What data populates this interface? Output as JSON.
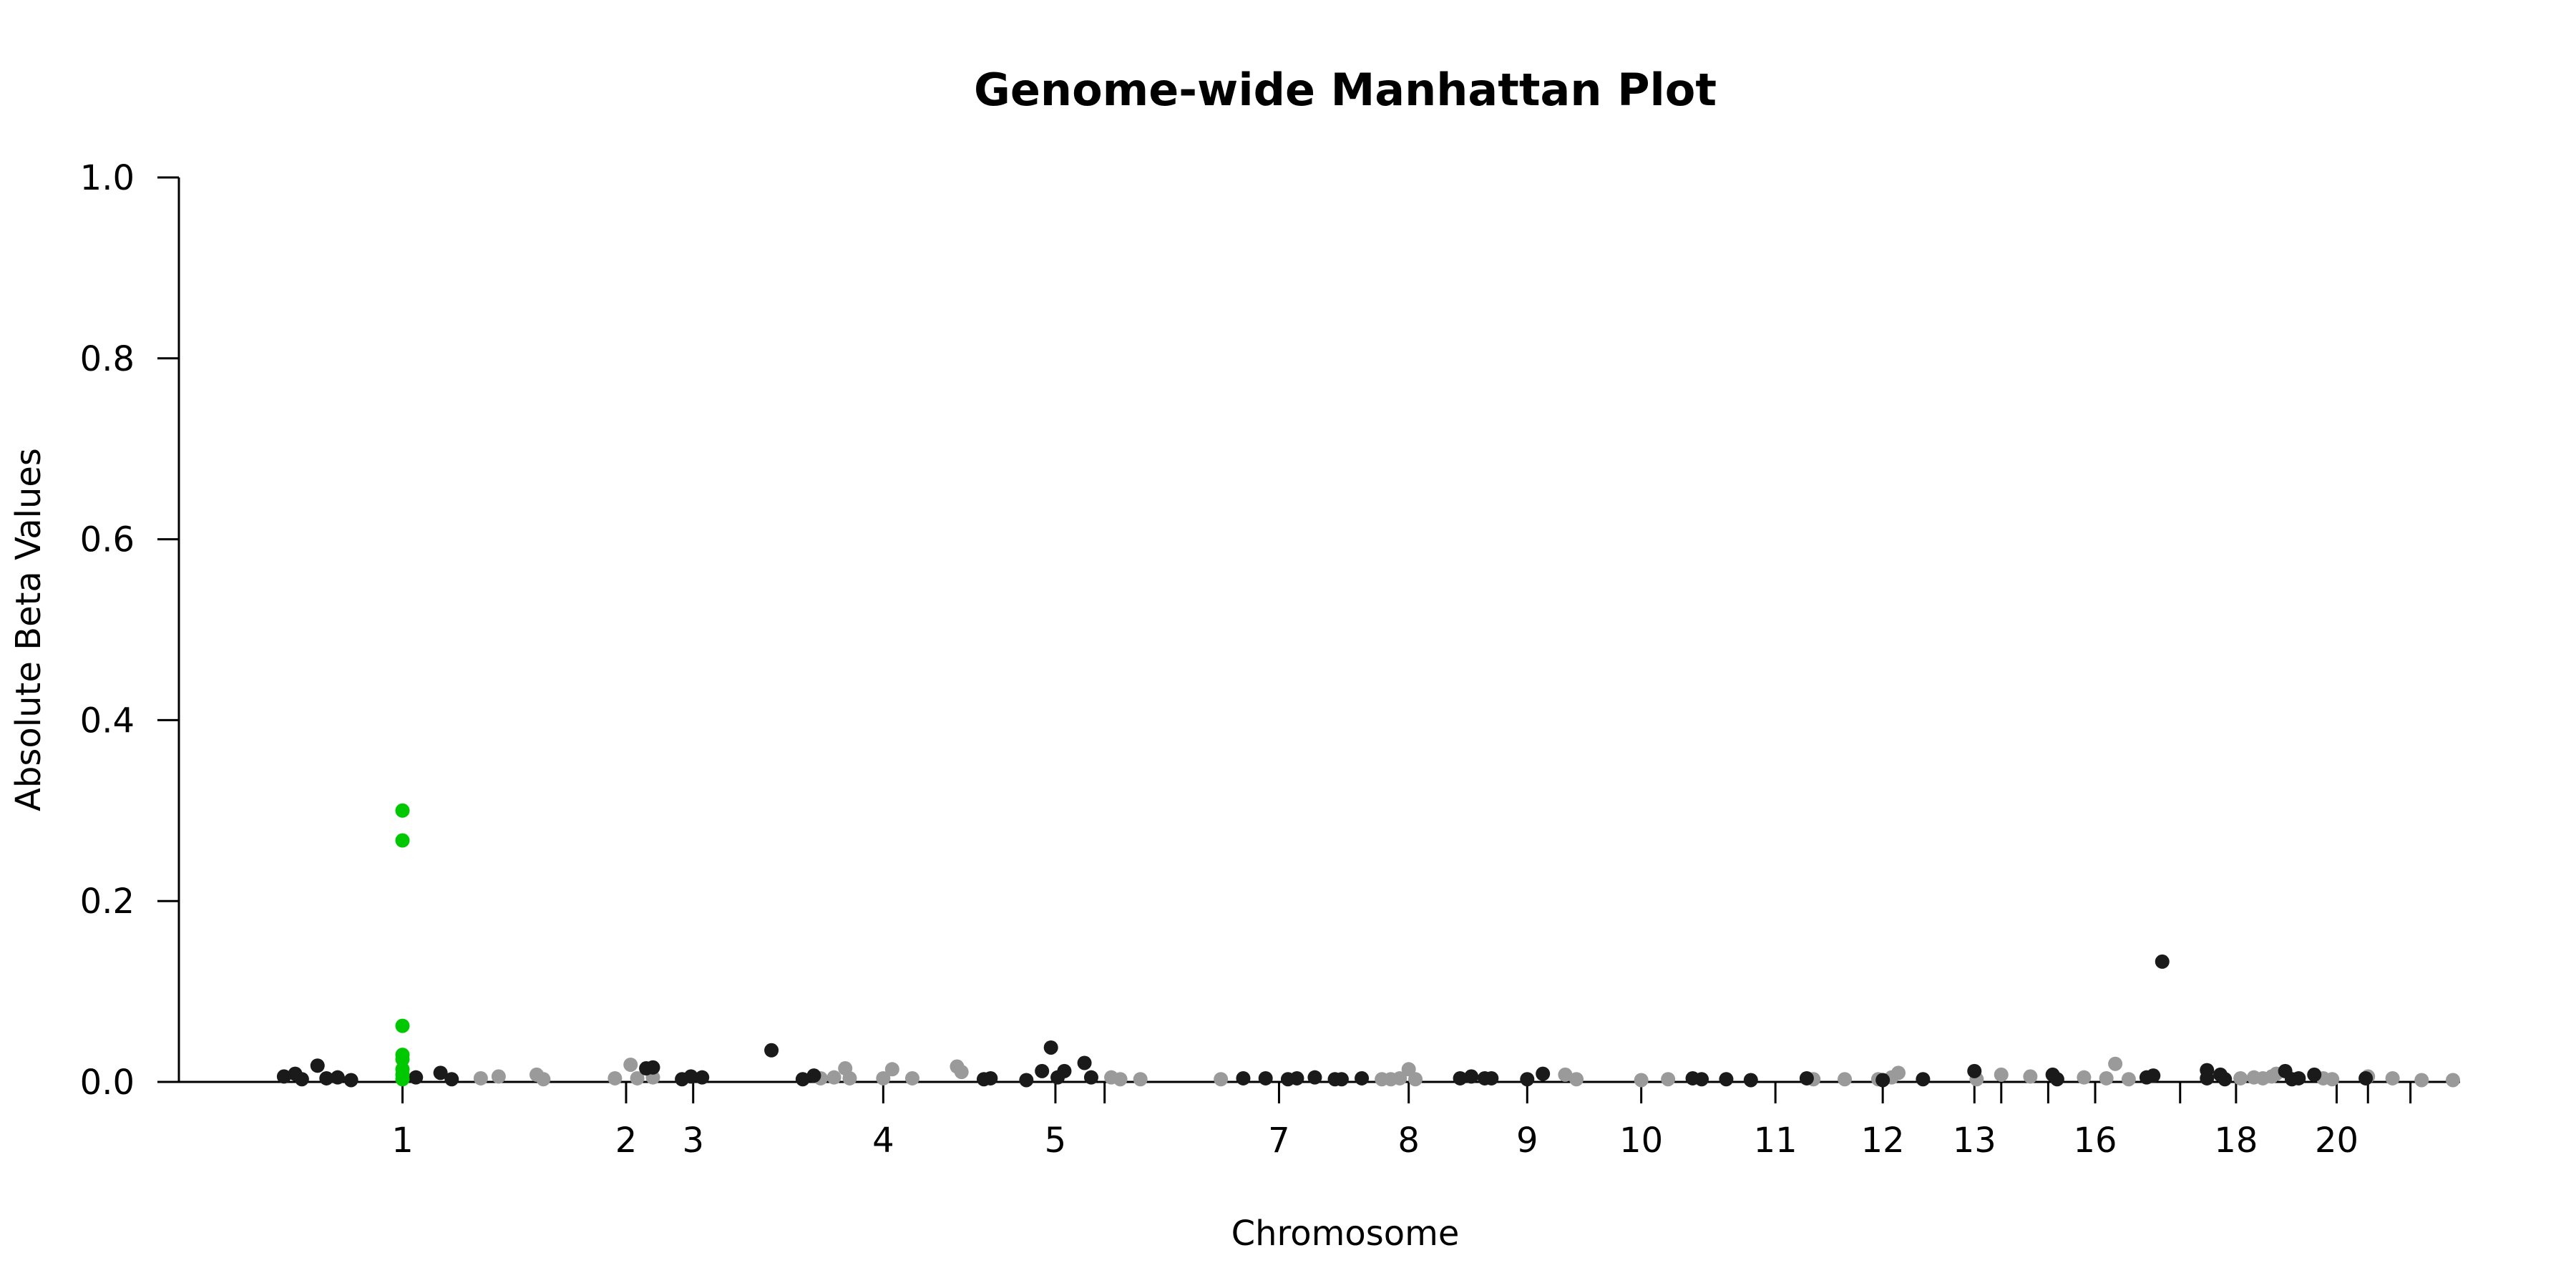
{
  "chart_data": {
    "type": "scatter",
    "title": "Genome-wide Manhattan Plot",
    "xlabel": "Chromosome",
    "ylabel": "Absolute Beta Values",
    "ylim": [
      0,
      1.0
    ],
    "y_ticks": [
      "0.0",
      "0.2",
      "0.4",
      "0.6",
      "0.8",
      "1.0"
    ],
    "x_ticks": [
      "1",
      "2",
      "3",
      "4",
      "5",
      "7",
      "8",
      "9",
      "10",
      "11",
      "12",
      "13",
      "16",
      "18",
      "20"
    ],
    "x_tick_positions": [
      1.0,
      2.0,
      2.3,
      3.15,
      3.92,
      4.92,
      5.5,
      6.03,
      6.54,
      7.14,
      7.62,
      8.03,
      8.57,
      9.2,
      9.65
    ],
    "x_unlabeled_tick_positions": [
      4.14,
      8.15,
      8.36,
      8.95,
      9.79,
      9.98
    ],
    "xlim": [
      0,
      10.17
    ],
    "grid": false,
    "legend": "none",
    "colors": {
      "dark": "#1a1a1a",
      "light": "#9a9a9a",
      "highlight": "#00c800",
      "axis": "#000000",
      "background": "#ffffff"
    },
    "points": [
      {
        "x": 0.47,
        "y": 0.006,
        "c": "dark"
      },
      {
        "x": 0.52,
        "y": 0.009,
        "c": "dark"
      },
      {
        "x": 0.55,
        "y": 0.003,
        "c": "dark"
      },
      {
        "x": 0.62,
        "y": 0.018,
        "c": "dark"
      },
      {
        "x": 0.66,
        "y": 0.004,
        "c": "dark"
      },
      {
        "x": 0.71,
        "y": 0.005,
        "c": "dark"
      },
      {
        "x": 0.77,
        "y": 0.002,
        "c": "dark"
      },
      {
        "x": 1.0,
        "y": 0.3,
        "c": "highlight"
      },
      {
        "x": 1.0,
        "y": 0.267,
        "c": "highlight"
      },
      {
        "x": 1.0,
        "y": 0.062,
        "c": "highlight"
      },
      {
        "x": 1.0,
        "y": 0.03,
        "c": "highlight"
      },
      {
        "x": 1.0,
        "y": 0.025,
        "c": "highlight"
      },
      {
        "x": 1.0,
        "y": 0.014,
        "c": "highlight"
      },
      {
        "x": 1.0,
        "y": 0.008,
        "c": "highlight"
      },
      {
        "x": 1.0,
        "y": 0.003,
        "c": "highlight"
      },
      {
        "x": 1.06,
        "y": 0.005,
        "c": "dark"
      },
      {
        "x": 1.17,
        "y": 0.01,
        "c": "dark"
      },
      {
        "x": 1.22,
        "y": 0.003,
        "c": "dark"
      },
      {
        "x": 1.35,
        "y": 0.004,
        "c": "light"
      },
      {
        "x": 1.43,
        "y": 0.006,
        "c": "light"
      },
      {
        "x": 1.6,
        "y": 0.008,
        "c": "light"
      },
      {
        "x": 1.63,
        "y": 0.003,
        "c": "light"
      },
      {
        "x": 1.95,
        "y": 0.004,
        "c": "light"
      },
      {
        "x": 2.02,
        "y": 0.019,
        "c": "light"
      },
      {
        "x": 2.05,
        "y": 0.004,
        "c": "light"
      },
      {
        "x": 2.09,
        "y": 0.015,
        "c": "dark"
      },
      {
        "x": 2.12,
        "y": 0.016,
        "c": "dark"
      },
      {
        "x": 2.12,
        "y": 0.005,
        "c": "light"
      },
      {
        "x": 2.25,
        "y": 0.003,
        "c": "dark"
      },
      {
        "x": 2.29,
        "y": 0.006,
        "c": "dark"
      },
      {
        "x": 2.34,
        "y": 0.005,
        "c": "dark"
      },
      {
        "x": 2.65,
        "y": 0.035,
        "c": "dark"
      },
      {
        "x": 2.79,
        "y": 0.003,
        "c": "dark"
      },
      {
        "x": 2.84,
        "y": 0.007,
        "c": "dark"
      },
      {
        "x": 2.87,
        "y": 0.004,
        "c": "light"
      },
      {
        "x": 2.93,
        "y": 0.005,
        "c": "light"
      },
      {
        "x": 2.98,
        "y": 0.015,
        "c": "light"
      },
      {
        "x": 3.0,
        "y": 0.004,
        "c": "light"
      },
      {
        "x": 3.15,
        "y": 0.004,
        "c": "light"
      },
      {
        "x": 3.19,
        "y": 0.014,
        "c": "light"
      },
      {
        "x": 3.28,
        "y": 0.004,
        "c": "light"
      },
      {
        "x": 3.48,
        "y": 0.017,
        "c": "light"
      },
      {
        "x": 3.5,
        "y": 0.011,
        "c": "light"
      },
      {
        "x": 3.6,
        "y": 0.003,
        "c": "dark"
      },
      {
        "x": 3.63,
        "y": 0.004,
        "c": "dark"
      },
      {
        "x": 3.79,
        "y": 0.002,
        "c": "dark"
      },
      {
        "x": 3.86,
        "y": 0.012,
        "c": "dark"
      },
      {
        "x": 3.9,
        "y": 0.038,
        "c": "dark"
      },
      {
        "x": 3.93,
        "y": 0.005,
        "c": "dark"
      },
      {
        "x": 3.96,
        "y": 0.012,
        "c": "dark"
      },
      {
        "x": 4.05,
        "y": 0.021,
        "c": "dark"
      },
      {
        "x": 4.08,
        "y": 0.005,
        "c": "dark"
      },
      {
        "x": 4.17,
        "y": 0.005,
        "c": "light"
      },
      {
        "x": 4.21,
        "y": 0.003,
        "c": "light"
      },
      {
        "x": 4.3,
        "y": 0.003,
        "c": "light"
      },
      {
        "x": 4.66,
        "y": 0.003,
        "c": "light"
      },
      {
        "x": 4.76,
        "y": 0.004,
        "c": "dark"
      },
      {
        "x": 4.86,
        "y": 0.004,
        "c": "dark"
      },
      {
        "x": 4.96,
        "y": 0.003,
        "c": "dark"
      },
      {
        "x": 5.0,
        "y": 0.004,
        "c": "dark"
      },
      {
        "x": 5.08,
        "y": 0.005,
        "c": "dark"
      },
      {
        "x": 5.17,
        "y": 0.003,
        "c": "dark"
      },
      {
        "x": 5.2,
        "y": 0.003,
        "c": "dark"
      },
      {
        "x": 5.29,
        "y": 0.004,
        "c": "dark"
      },
      {
        "x": 5.38,
        "y": 0.003,
        "c": "light"
      },
      {
        "x": 5.42,
        "y": 0.003,
        "c": "light"
      },
      {
        "x": 5.46,
        "y": 0.004,
        "c": "light"
      },
      {
        "x": 5.5,
        "y": 0.014,
        "c": "light"
      },
      {
        "x": 5.53,
        "y": 0.003,
        "c": "light"
      },
      {
        "x": 5.73,
        "y": 0.004,
        "c": "dark"
      },
      {
        "x": 5.78,
        "y": 0.006,
        "c": "dark"
      },
      {
        "x": 5.84,
        "y": 0.004,
        "c": "dark"
      },
      {
        "x": 5.87,
        "y": 0.004,
        "c": "dark"
      },
      {
        "x": 6.03,
        "y": 0.003,
        "c": "dark"
      },
      {
        "x": 6.1,
        "y": 0.009,
        "c": "dark"
      },
      {
        "x": 6.2,
        "y": 0.008,
        "c": "light"
      },
      {
        "x": 6.25,
        "y": 0.003,
        "c": "light"
      },
      {
        "x": 6.54,
        "y": 0.002,
        "c": "light"
      },
      {
        "x": 6.66,
        "y": 0.003,
        "c": "light"
      },
      {
        "x": 6.77,
        "y": 0.004,
        "c": "dark"
      },
      {
        "x": 6.81,
        "y": 0.003,
        "c": "dark"
      },
      {
        "x": 6.92,
        "y": 0.003,
        "c": "dark"
      },
      {
        "x": 7.03,
        "y": 0.002,
        "c": "dark"
      },
      {
        "x": 7.28,
        "y": 0.004,
        "c": "dark"
      },
      {
        "x": 7.31,
        "y": 0.003,
        "c": "light"
      },
      {
        "x": 7.45,
        "y": 0.003,
        "c": "light"
      },
      {
        "x": 7.6,
        "y": 0.003,
        "c": "light"
      },
      {
        "x": 7.66,
        "y": 0.005,
        "c": "light"
      },
      {
        "x": 7.69,
        "y": 0.01,
        "c": "light"
      },
      {
        "x": 7.62,
        "y": 0.002,
        "c": "dark"
      },
      {
        "x": 7.8,
        "y": 0.003,
        "c": "dark"
      },
      {
        "x": 8.03,
        "y": 0.012,
        "c": "dark"
      },
      {
        "x": 8.04,
        "y": 0.003,
        "c": "light"
      },
      {
        "x": 8.15,
        "y": 0.008,
        "c": "light"
      },
      {
        "x": 8.28,
        "y": 0.006,
        "c": "light"
      },
      {
        "x": 8.38,
        "y": 0.008,
        "c": "dark"
      },
      {
        "x": 8.4,
        "y": 0.003,
        "c": "dark"
      },
      {
        "x": 8.52,
        "y": 0.005,
        "c": "light"
      },
      {
        "x": 8.62,
        "y": 0.004,
        "c": "light"
      },
      {
        "x": 8.66,
        "y": 0.02,
        "c": "light"
      },
      {
        "x": 8.72,
        "y": 0.003,
        "c": "light"
      },
      {
        "x": 8.8,
        "y": 0.005,
        "c": "dark"
      },
      {
        "x": 8.83,
        "y": 0.007,
        "c": "dark"
      },
      {
        "x": 8.87,
        "y": 0.133,
        "c": "dark"
      },
      {
        "x": 9.07,
        "y": 0.013,
        "c": "dark"
      },
      {
        "x": 9.07,
        "y": 0.004,
        "c": "dark"
      },
      {
        "x": 9.13,
        "y": 0.008,
        "c": "dark"
      },
      {
        "x": 9.15,
        "y": 0.003,
        "c": "dark"
      },
      {
        "x": 9.22,
        "y": 0.004,
        "c": "light"
      },
      {
        "x": 9.28,
        "y": 0.005,
        "c": "light"
      },
      {
        "x": 9.32,
        "y": 0.004,
        "c": "light"
      },
      {
        "x": 9.36,
        "y": 0.006,
        "c": "light"
      },
      {
        "x": 9.38,
        "y": 0.009,
        "c": "light"
      },
      {
        "x": 9.42,
        "y": 0.012,
        "c": "dark"
      },
      {
        "x": 9.45,
        "y": 0.003,
        "c": "dark"
      },
      {
        "x": 9.48,
        "y": 0.004,
        "c": "dark"
      },
      {
        "x": 9.55,
        "y": 0.008,
        "c": "dark"
      },
      {
        "x": 9.59,
        "y": 0.004,
        "c": "light"
      },
      {
        "x": 9.63,
        "y": 0.003,
        "c": "light"
      },
      {
        "x": 9.78,
        "y": 0.004,
        "c": "dark"
      },
      {
        "x": 9.79,
        "y": 0.006,
        "c": "light"
      },
      {
        "x": 9.9,
        "y": 0.004,
        "c": "light"
      },
      {
        "x": 10.03,
        "y": 0.002,
        "c": "light"
      },
      {
        "x": 10.17,
        "y": 0.002,
        "c": "light"
      }
    ]
  }
}
